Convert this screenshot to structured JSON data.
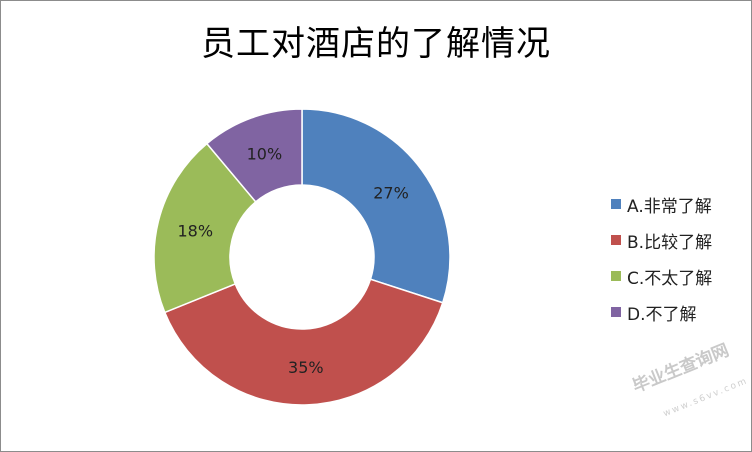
{
  "chart_data": {
    "type": "pie",
    "variant": "doughnut",
    "title": "员工对酒店的了解情况",
    "categories": [
      "A.非常了解",
      "B.比较了解",
      "C.不太了解",
      "D.不了解"
    ],
    "values": [
      27,
      35,
      18,
      10
    ],
    "data_labels": [
      "27%",
      "35%",
      "18%",
      "10%"
    ],
    "colors": [
      "#4f81bd",
      "#c0504d",
      "#9bbb59",
      "#8064a2"
    ],
    "legend_position": "right"
  },
  "watermark": {
    "text": "毕业生查询网",
    "subtext": "www.s6vv.com"
  }
}
